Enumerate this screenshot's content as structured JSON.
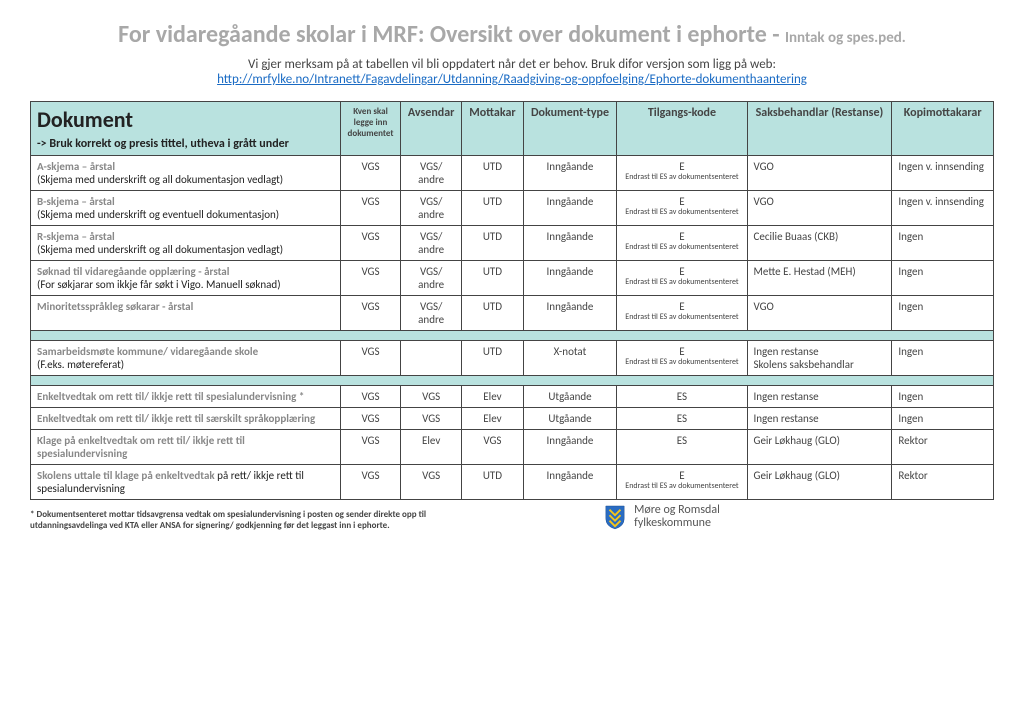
{
  "header": {
    "title_main": "For vidaregåande skolar i MRF: Oversikt over dokument i ephorte - ",
    "title_sub": "Inntak og spes.ped.",
    "intro_text": "Vi gjer merksam på at tabellen vil bli oppdatert når det er behov. Bruk difor versjon som ligg på web:",
    "link_text": "http://mrfylke.no/Intranett/Fagavdelingar/Utdanning/Raadgiving-og-oppfoelging/Ephorte-dokumenthaantering"
  },
  "columns": {
    "dokument_big": "Dokument",
    "dokument_small": "-> Bruk korrekt og presis tittel, utheva i grått under",
    "kven": "Kven skal legge inn dokumentet",
    "avsendar": "Avsendar",
    "mottakar": "Mottakar",
    "doktype": "Dokument-type",
    "tilgang": "Tilgangs-kode",
    "saks": "Saksbehandlar (Restanse)",
    "kopi": "Kopimottakarar"
  },
  "tilgang_sub": "Endrast til ES av dokumentsenteret",
  "rows": [
    {
      "t1": "A-skjema – årstal",
      "t2": "(Skjema med underskrift og all dokumentasjon vedlagt)",
      "kven": "VGS",
      "av": "VGS/ andre",
      "mot": "UTD",
      "dt": "Inngåande",
      "tg": "E",
      "tgsub": true,
      "saks": "VGO",
      "kopi": "Ingen v. innsending"
    },
    {
      "t1": "B-skjema – årstal",
      "t2": "(Skjema med underskrift og eventuell dokumentasjon)",
      "kven": "VGS",
      "av": "VGS/ andre",
      "mot": "UTD",
      "dt": "Inngåande",
      "tg": "E",
      "tgsub": true,
      "saks": "VGO",
      "kopi": "Ingen v. innsending"
    },
    {
      "t1": "R-skjema – årstal",
      "t2": "(Skjema med underskrift og all dokumentasjon vedlagt)",
      "kven": "VGS",
      "av": "VGS/ andre",
      "mot": "UTD",
      "dt": "Inngåande",
      "tg": "E",
      "tgsub": true,
      "saks": "Cecilie Buaas (CKB)",
      "kopi": "Ingen"
    },
    {
      "t1": "Søknad til vidaregåande opplæring - årstal",
      "t2": "(For søkjarar som ikkje får søkt i Vigo. Manuell søknad)",
      "kven": "VGS",
      "av": "VGS/ andre",
      "mot": "UTD",
      "dt": "Inngåande",
      "tg": "E",
      "tgsub": true,
      "saks": "Mette E. Hestad (MEH)",
      "kopi": "Ingen"
    },
    {
      "t1": "Minoritetsspråkleg søkarar - årstal",
      "t2": "",
      "kven": "VGS",
      "av": "VGS/ andre",
      "mot": "UTD",
      "dt": "Inngåande",
      "tg": "E",
      "tgsub": true,
      "saks": "VGO",
      "kopi": "Ingen"
    },
    {
      "spacer": true
    },
    {
      "t1": "Samarbeidsmøte kommune/ vidaregåande skole",
      "t2": "(F.eks. møtereferat)",
      "kven": "VGS",
      "av": "",
      "mot": "UTD",
      "dt": "X-notat",
      "tg": "E",
      "tgsub": true,
      "saks": "Ingen restanse\nSkolens saksbehandlar",
      "kopi": "Ingen"
    },
    {
      "spacer": true
    },
    {
      "t1": "Enkeltvedtak om rett til/ ikkje rett til  spesialundervisning *",
      "t2": "",
      "kven": "VGS",
      "av": "VGS",
      "mot": "Elev",
      "dt": "Utgåande",
      "tg": "ES",
      "tgsub": false,
      "saks": "Ingen restanse",
      "kopi": "Ingen"
    },
    {
      "t1": "Enkeltvedtak om rett til/ ikkje rett til særskilt språkopplæring",
      "t2": "",
      "kven": "VGS",
      "av": "VGS",
      "mot": "Elev",
      "dt": "Utgåande",
      "tg": "ES",
      "tgsub": false,
      "saks": "Ingen restanse",
      "kopi": "Ingen"
    },
    {
      "t1": "Klage på enkeltvedtak om rett til/ ikkje rett til spesialundervisning",
      "t2": "",
      "kven": "VGS",
      "av": "Elev",
      "mot": "VGS",
      "dt": "Inngåande",
      "tg": "ES",
      "tgsub": false,
      "saks": "Geir Løkhaug (GLO)",
      "kopi": "Rektor"
    },
    {
      "t1_pre": "Skolens uttale til klage på enkeltvedtak ",
      "t1_post": "på rett/ ikkje rett til spesialundervisning",
      "kven": "VGS",
      "av": "VGS",
      "mot": "UTD",
      "dt": "Inngåande",
      "tg": "E",
      "tgsub": true,
      "saks": "Geir Løkhaug (GLO)",
      "kopi": "Rektor"
    }
  ],
  "footnote": "* Dokumentsenteret mottar tidsavgrensa vedtak om spesialundervisning i posten og sender direkte opp til utdanningsavdelinga ved KTA eller ANSA for signering/ godkjenning før det leggast inn i ephorte.",
  "logo": {
    "line1": "Møre og Romsdal",
    "line2": "fylkeskommune"
  }
}
